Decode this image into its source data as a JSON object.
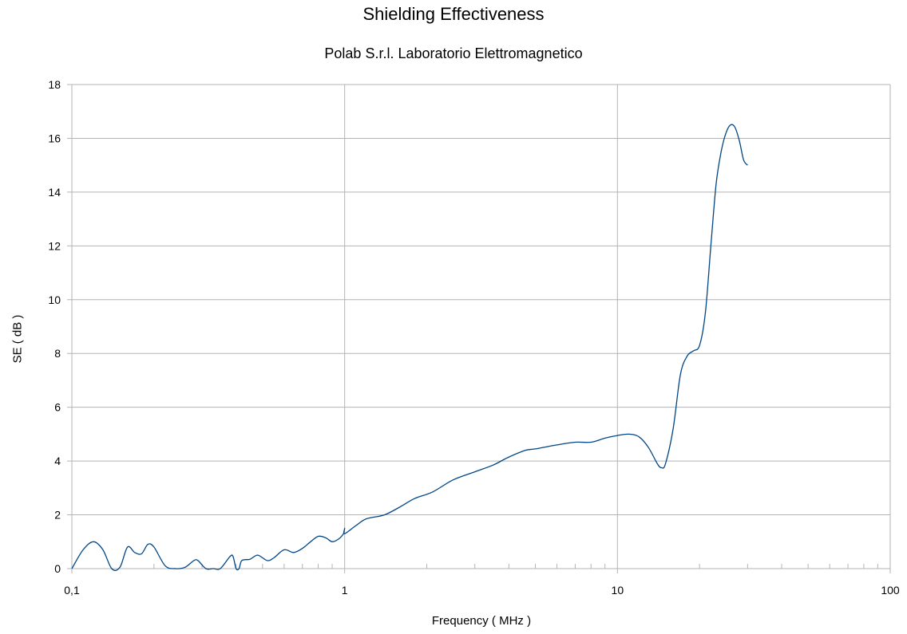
{
  "chart_data": {
    "type": "line",
    "title": "Shielding Effectiveness",
    "subtitle": "Polab S.r.l. Laboratorio Elettromagnetico",
    "xlabel": "Frequency ( MHz )",
    "ylabel": "SE ( dB )",
    "x_scale": "log",
    "xlim": [
      0.1,
      100
    ],
    "ylim": [
      0,
      18
    ],
    "x_ticks": [
      {
        "value": 0.1,
        "label": "0,1"
      },
      {
        "value": 1,
        "label": "1"
      },
      {
        "value": 10,
        "label": "10"
      },
      {
        "value": 100,
        "label": "100"
      }
    ],
    "y_ticks": [
      {
        "value": 0,
        "label": "0"
      },
      {
        "value": 2,
        "label": "2"
      },
      {
        "value": 4,
        "label": "4"
      },
      {
        "value": 6,
        "label": "6"
      },
      {
        "value": 8,
        "label": "8"
      },
      {
        "value": 10,
        "label": "10"
      },
      {
        "value": 12,
        "label": "12"
      },
      {
        "value": 14,
        "label": "14"
      },
      {
        "value": 16,
        "label": "16"
      },
      {
        "value": 18,
        "label": "18"
      }
    ],
    "grid": true,
    "legend": "none",
    "line_color": "#004586",
    "series": [
      {
        "x": [
          0.1,
          0.11,
          0.12,
          0.13,
          0.14,
          0.15,
          0.16,
          0.17,
          0.18,
          0.19,
          0.2,
          0.22,
          0.24,
          0.26,
          0.28,
          0.29,
          0.31,
          0.33,
          0.35,
          0.38,
          0.39,
          0.4,
          0.41,
          0.42,
          0.45,
          0.48,
          0.52,
          0.55,
          0.6,
          0.65,
          0.7,
          0.75,
          0.8,
          0.85,
          0.9,
          0.95,
          0.99,
          1.0,
          1.0,
          1.1,
          1.2,
          1.4,
          1.6,
          1.8,
          2.1,
          2.5,
          3,
          3.5,
          4,
          4.6,
          5,
          6,
          7,
          8,
          9,
          10,
          11,
          12,
          13,
          14,
          14.5,
          15,
          16,
          17,
          18,
          19,
          20,
          21,
          22,
          23,
          24,
          25,
          26,
          27,
          28,
          29,
          30
        ],
        "y": [
          0.0,
          0.7,
          1.0,
          0.7,
          0.0,
          0.05,
          0.8,
          0.6,
          0.55,
          0.9,
          0.8,
          0.1,
          0.0,
          0.05,
          0.3,
          0.3,
          0.0,
          0.0,
          0.0,
          0.45,
          0.45,
          0.0,
          0.0,
          0.3,
          0.35,
          0.5,
          0.3,
          0.4,
          0.7,
          0.6,
          0.75,
          1.0,
          1.2,
          1.15,
          1.0,
          1.1,
          1.3,
          1.5,
          1.3,
          1.6,
          1.85,
          2.0,
          2.3,
          2.6,
          2.85,
          3.3,
          3.6,
          3.85,
          4.15,
          4.4,
          4.45,
          4.6,
          4.7,
          4.7,
          4.85,
          4.95,
          5.0,
          4.9,
          4.5,
          3.9,
          3.75,
          3.9,
          5.2,
          7.2,
          7.9,
          8.1,
          8.3,
          9.5,
          12.0,
          14.3,
          15.5,
          16.2,
          16.5,
          16.4,
          15.9,
          15.2,
          15.0
        ]
      }
    ]
  }
}
